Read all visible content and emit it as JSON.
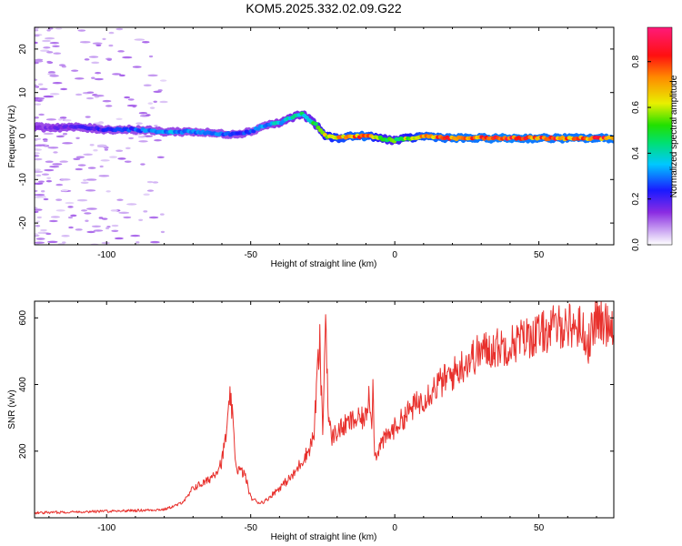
{
  "title": "KOM5.2025.332.02.09.G22",
  "chart_data": [
    {
      "type": "heatmap",
      "name": "spectrogram",
      "xlabel": "Height of straight line (km)",
      "ylabel": "Frequency (Hz)",
      "xlim": [
        -125,
        76
      ],
      "ylim": [
        -25,
        25
      ],
      "xticks": [
        -100,
        -50,
        0,
        50
      ],
      "xtick_labels": [
        "-100",
        "-50",
        "0",
        "50"
      ],
      "yticks": [
        -20,
        -10,
        0,
        10,
        20
      ],
      "ytick_labels": [
        "-20",
        "-10",
        "0",
        "10",
        "20"
      ],
      "ridge": {
        "x": [
          -125,
          -110,
          -100,
          -90,
          -80,
          -70,
          -60,
          -55,
          -50,
          -45,
          -40,
          -35,
          -32,
          -28,
          -24,
          -20,
          -15,
          -10,
          -5,
          0,
          10,
          20,
          30,
          40,
          50,
          60,
          70,
          76
        ],
        "freq": [
          2.0,
          2.0,
          1.5,
          1.5,
          1.0,
          1.0,
          0.5,
          0.5,
          1.0,
          2.5,
          3.0,
          4.5,
          5.0,
          3.0,
          0.0,
          -0.5,
          0.0,
          0.0,
          -0.5,
          -1.0,
          0.0,
          -0.5,
          -0.5,
          -0.5,
          -0.5,
          -0.5,
          -0.5,
          -0.5
        ],
        "amplitude": [
          0.15,
          0.2,
          0.25,
          0.3,
          0.35,
          0.35,
          0.3,
          0.25,
          0.3,
          0.35,
          0.4,
          0.45,
          0.45,
          0.5,
          0.65,
          0.75,
          0.8,
          0.85,
          0.6,
          0.55,
          0.8,
          0.85,
          0.85,
          0.88,
          0.85,
          0.85,
          0.85,
          0.85
        ]
      },
      "colorbar": {
        "label": "Normalized spectral amplitude",
        "range": [
          0.0,
          0.95
        ],
        "ticks": [
          0.0,
          0.2,
          0.4,
          0.6,
          0.8
        ],
        "tick_labels": [
          "0.0",
          "0.2",
          "0.4",
          "0.6",
          "0.8"
        ]
      }
    },
    {
      "type": "line",
      "name": "snr",
      "xlabel": "Height of straight line (km)",
      "ylabel": "SNR (v/v)",
      "xlim": [
        -125,
        76
      ],
      "ylim": [
        0,
        650
      ],
      "xticks": [
        -100,
        -50,
        0,
        50
      ],
      "xtick_labels": [
        "-100",
        "-50",
        "0",
        "50"
      ],
      "yticks": [
        200,
        400,
        600
      ],
      "ytick_labels": [
        "200",
        "400",
        "600"
      ],
      "color": "#e8302c",
      "series": [
        {
          "name": "SNR",
          "x": [
            -125,
            -110,
            -100,
            -90,
            -80,
            -75,
            -72,
            -70,
            -65,
            -62,
            -60,
            -58,
            -57,
            -55,
            -52,
            -50,
            -47,
            -45,
            -40,
            -35,
            -33,
            -30,
            -28,
            -27,
            -26,
            -25,
            -24,
            -23,
            -22,
            -20,
            -15,
            -10,
            -9,
            -8,
            -7.5,
            -7,
            -5,
            0,
            5,
            10,
            15,
            20,
            25,
            30,
            35,
            40,
            45,
            50,
            55,
            60,
            65,
            67,
            70,
            72,
            76
          ],
          "y": [
            15,
            18,
            20,
            22,
            25,
            40,
            60,
            90,
            110,
            140,
            170,
            280,
            370,
            150,
            130,
            60,
            45,
            50,
            90,
            130,
            160,
            200,
            250,
            420,
            520,
            250,
            620,
            300,
            240,
            260,
            290,
            300,
            380,
            300,
            410,
            180,
            220,
            270,
            320,
            360,
            400,
            430,
            470,
            500,
            510,
            520,
            540,
            550,
            570,
            580,
            570,
            520,
            600,
            580,
            590
          ]
        }
      ]
    }
  ]
}
